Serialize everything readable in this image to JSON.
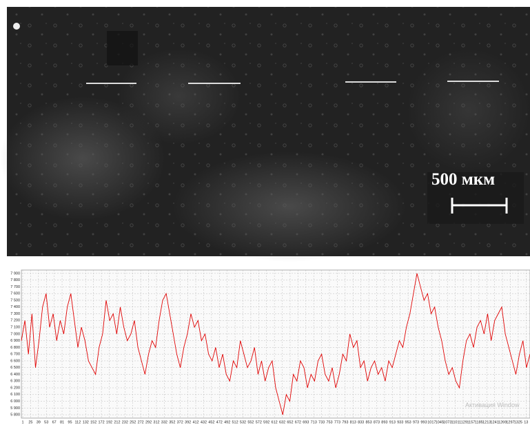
{
  "image_caption": {
    "scale_label": "500 мкм"
  },
  "chart_data": {
    "type": "line",
    "series": [
      {
        "color": "#e00000",
        "values": [
          6900,
          7200,
          6700,
          7300,
          6500,
          6900,
          7400,
          7600,
          7100,
          7300,
          6900,
          7200,
          7000,
          7400,
          7600,
          7200,
          6800,
          7100,
          6900,
          6600,
          6500,
          6400,
          6800,
          7000,
          7500,
          7200,
          7300,
          7000,
          7400,
          7100,
          6900,
          7000,
          7200,
          6800,
          6600,
          6400,
          6700,
          6900,
          6800,
          7200,
          7500,
          7600,
          7300,
          7000,
          6700,
          6500,
          6800,
          7000,
          7300,
          7100,
          7200,
          6900,
          7000,
          6700,
          6600,
          6800,
          6500,
          6700,
          6400,
          6300,
          6600,
          6500,
          6900,
          6700,
          6500,
          6600,
          6800,
          6400,
          6600,
          6300,
          6500,
          6600,
          6200,
          6000,
          5800,
          6100,
          6000,
          6400,
          6300,
          6600,
          6500,
          6200,
          6400,
          6300,
          6600,
          6700,
          6400,
          6300,
          6500,
          6200,
          6400,
          6700,
          6600,
          7000,
          6800,
          6900,
          6500,
          6600,
          6300,
          6500,
          6600,
          6400,
          6500,
          6300,
          6600,
          6500,
          6700,
          6900,
          6800,
          7100,
          7300,
          7600,
          7900,
          7700,
          7500,
          7600,
          7300,
          7400,
          7100,
          6900,
          6600,
          6400,
          6500,
          6300,
          6200,
          6600,
          6900,
          7000,
          6800,
          7100,
          7200,
          7000,
          7300,
          6900,
          7200,
          7300,
          7400,
          7000,
          6800,
          6600,
          6400,
          6700,
          6900,
          6500,
          6700
        ]
      }
    ],
    "x_tick_labels": [
      "1",
      "25",
      "39",
      "53",
      "67",
      "81",
      "95",
      "112",
      "132",
      "152",
      "172",
      "192",
      "212",
      "232",
      "252",
      "272",
      "292",
      "312",
      "332",
      "352",
      "372",
      "392",
      "412",
      "432",
      "452",
      "472",
      "492",
      "512",
      "532",
      "552",
      "572",
      "592",
      "612",
      "632",
      "652",
      "672",
      "693",
      "713",
      "733",
      "753",
      "773",
      "793",
      "813",
      "833",
      "853",
      "873",
      "893",
      "913",
      "933",
      "953",
      "973",
      "993",
      "1017",
      "1045",
      "1073",
      "1101",
      "1129",
      "1157",
      "1185",
      "1213",
      "1241",
      "1269",
      "1297",
      "1325",
      "13"
    ],
    "ylim": [
      5750,
      7950
    ],
    "yticks": [
      {
        "value": 5800,
        "label": "5 800"
      },
      {
        "value": 5900,
        "label": "5 900"
      },
      {
        "value": 6000,
        "label": "6 000"
      },
      {
        "value": 6100,
        "label": "6 100"
      },
      {
        "value": 6200,
        "label": "6 200"
      },
      {
        "value": 6300,
        "label": "6 300"
      },
      {
        "value": 6400,
        "label": "6 400"
      },
      {
        "value": 6500,
        "label": "6 500"
      },
      {
        "value": 6600,
        "label": "6 600"
      },
      {
        "value": 6700,
        "label": "6 700"
      },
      {
        "value": 6800,
        "label": "6 800"
      },
      {
        "value": 6900,
        "label": "6 900"
      },
      {
        "value": 7000,
        "label": "7 000"
      },
      {
        "value": 7100,
        "label": "7 100"
      },
      {
        "value": 7200,
        "label": "7 200"
      },
      {
        "value": 7300,
        "label": "7 300"
      },
      {
        "value": 7400,
        "label": "7 400"
      },
      {
        "value": 7500,
        "label": "7 500"
      },
      {
        "value": 7600,
        "label": "7 600"
      },
      {
        "value": 7700,
        "label": "7 700"
      },
      {
        "value": 7800,
        "label": "7 800"
      },
      {
        "value": 7900,
        "label": "7 900"
      }
    ],
    "grid": true,
    "watermark": "Активация Window"
  }
}
